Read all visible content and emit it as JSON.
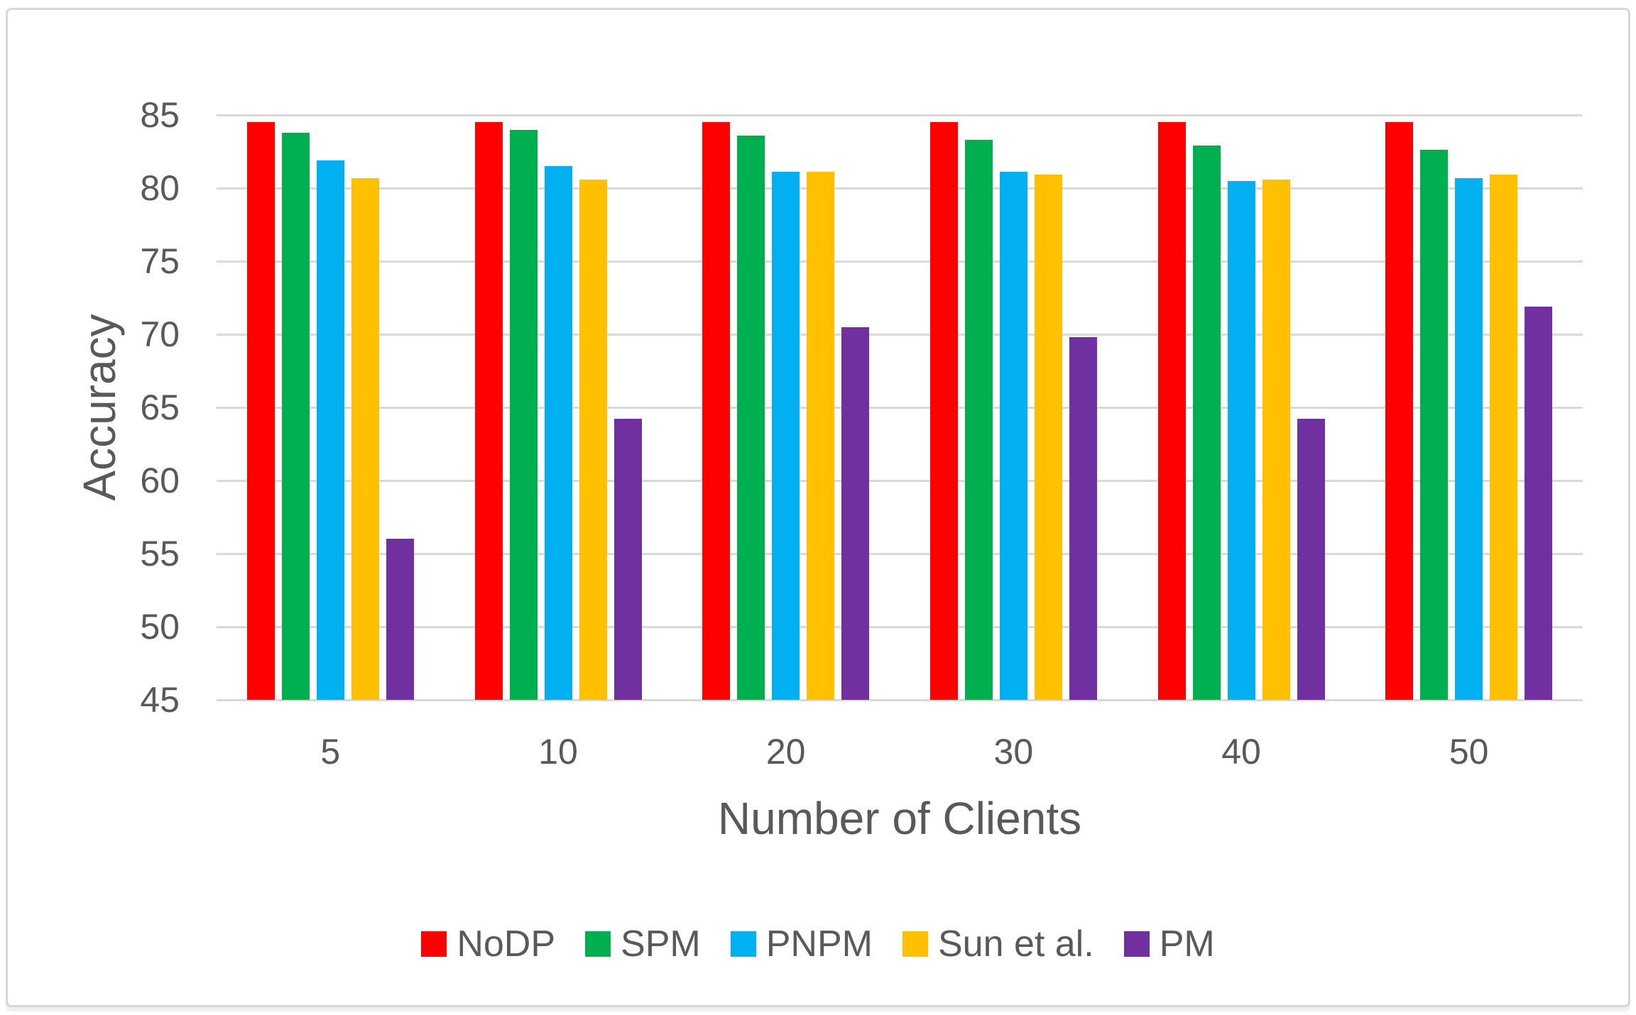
{
  "chart_data": {
    "type": "bar",
    "title": "",
    "xlabel": "Number of Clients",
    "ylabel": "Accuracy",
    "categories": [
      "5",
      "10",
      "20",
      "30",
      "40",
      "50"
    ],
    "series": [
      {
        "name": "NoDP",
        "color": "#ff0000",
        "values": [
          84.5,
          84.5,
          84.5,
          84.5,
          84.5,
          84.5
        ]
      },
      {
        "name": "SPM",
        "color": "#00b050",
        "values": [
          83.8,
          84.0,
          83.6,
          83.3,
          82.9,
          82.6
        ]
      },
      {
        "name": "PNPM",
        "color": "#00b0f0",
        "values": [
          81.9,
          81.5,
          81.1,
          81.1,
          80.5,
          80.7
        ]
      },
      {
        "name": "Sun et al.",
        "color": "#ffc000",
        "values": [
          80.7,
          80.6,
          81.1,
          80.9,
          80.6,
          80.9
        ]
      },
      {
        "name": "PM",
        "color": "#7030a0",
        "values": [
          56.0,
          64.2,
          70.5,
          69.8,
          64.2,
          71.9
        ]
      }
    ],
    "ylim": [
      45,
      85
    ],
    "yticks": [
      45,
      50,
      55,
      60,
      65,
      70,
      75,
      80,
      85
    ],
    "grid": true,
    "legend_position": "bottom",
    "colors": {
      "text": "#595959",
      "gridline": "#d9d9d9",
      "frame_border": "#d7d7d7",
      "background": "#ffffff"
    }
  }
}
